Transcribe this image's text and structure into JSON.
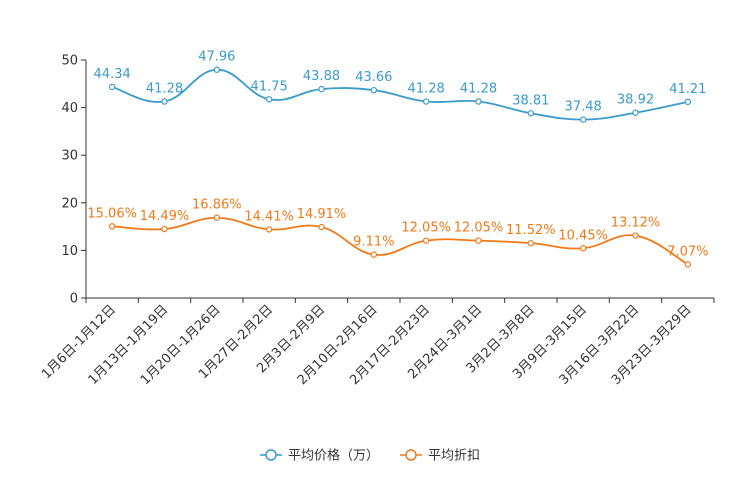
{
  "chart_data": {
    "type": "line",
    "title": "",
    "xlabel": "",
    "ylabel": "",
    "ylim": [
      0,
      50
    ],
    "yticks": [
      0,
      10,
      20,
      30,
      40,
      50
    ],
    "grid": false,
    "legend_position": "bottom",
    "categories": [
      "1月6日-1月12日",
      "1月13日-1月19日",
      "1月20日-1月26日",
      "1月27日-2月2日",
      "2月3日-2月9日",
      "2月10日-2月16日",
      "2月17日-2月23日",
      "2月24日-3月1日",
      "3月2日-3月8日",
      "3月9日-3月15日",
      "3月16日-3月22日",
      "3月23日-3月29日"
    ],
    "series": [
      {
        "name": "平均价格（万）",
        "color": "#3a9bcd",
        "values": [
          44.34,
          41.28,
          47.96,
          41.75,
          43.88,
          43.66,
          41.28,
          41.28,
          38.81,
          37.48,
          38.92,
          41.21
        ],
        "labels": [
          "44.34",
          "41.28",
          "47.96",
          "41.75",
          "43.88",
          "43.66",
          "41.28",
          "41.28",
          "38.81",
          "37.48",
          "38.92",
          "41.21"
        ]
      },
      {
        "name": "平均折扣",
        "color": "#f07a1a",
        "values": [
          15.06,
          14.49,
          16.86,
          14.41,
          14.91,
          9.11,
          12.05,
          12.05,
          11.52,
          10.45,
          13.12,
          7.07
        ],
        "labels": [
          "15.06%",
          "14.49%",
          "16.86%",
          "14.41%",
          "14.91%",
          "9.11%",
          "12.05%",
          "12.05%",
          "11.52%",
          "10.45%",
          "13.12%",
          "7.07%"
        ]
      }
    ]
  }
}
